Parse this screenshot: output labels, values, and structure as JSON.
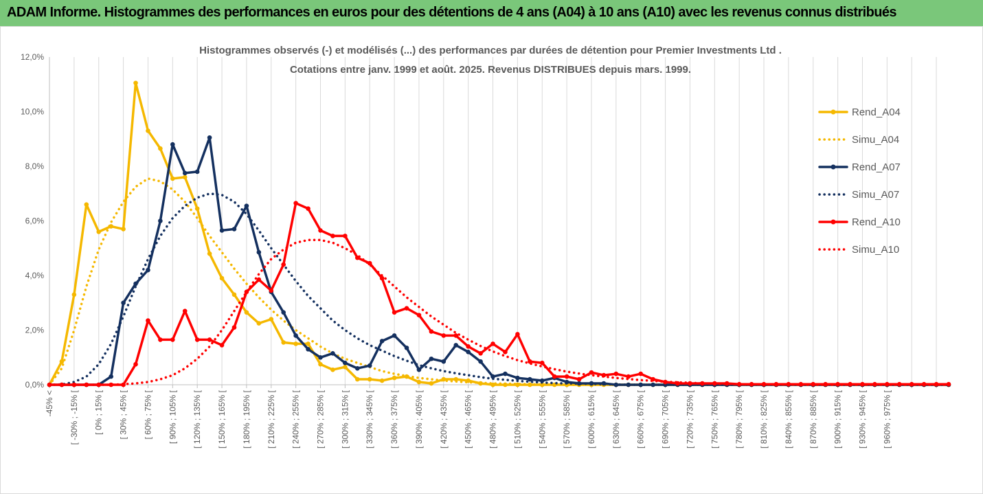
{
  "header": {
    "title": "ADAM Informe. Histogrammes des performances en euros pour des détentions de 4 ans (A04) à 10 ans (A10) avec les revenus connus distribués"
  },
  "chart_data": {
    "type": "line",
    "title_line1": "Histogrammes observés (-) et modélisés (...) des performances par durées de détention pour Premier Investments Ltd .",
    "title_line2": "Cotations entre janv. 1999 et août. 2025. Revenus DISTRIBUES depuis mars. 1999.",
    "xlabel": "",
    "ylabel": "",
    "ylim": [
      0,
      12
    ],
    "y_ticks": [
      "0,0%",
      "2,0%",
      "4,0%",
      "6,0%",
      "8,0%",
      "10,0%",
      "12,0%"
    ],
    "x_tick_labels": [
      "-45% <",
      "[ -30% ; -15% [",
      "[ 0% ; 15% [",
      "[ 30% ; 45% [",
      "[ 60% ; 75% [",
      "[ 90% ; 105% [",
      "[ 120% ; 135% [",
      "[ 150% ; 165% [",
      "[ 180% ; 195% [",
      "[ 210% ; 225% [",
      "[ 240% ; 255% [",
      "[ 270% ; 285% [",
      "[ 300% ; 315% [",
      "[ 330% ; 345% [",
      "[ 360% ; 375% [",
      "[ 390% ; 405% [",
      "[ 420% ; 435% [",
      "[ 450% ; 465% [",
      "[ 480% ; 495% [",
      "[ 510% ; 525% [",
      "[ 540% ; 555% [",
      "[ 570% ; 585% [",
      "[ 600% ; 615% [",
      "[ 630% ; 645% [",
      "[ 660% ; 675% [",
      "[ 690% ; 705% [",
      "[ 720% ; 735% [",
      "[ 750% ; 765% [",
      "[ 780% ; 795% [",
      "[ 810% ; 825% [",
      "[ 840% ; 855% [",
      "[ 870% ; 885% [",
      "[ 900% ; 915% [",
      "[ 930% ; 945% [",
      "[ 960% ; 975% ["
    ],
    "legend_position": "right",
    "grid": "vertical",
    "series": [
      {
        "name": "Rend_A04",
        "style": "solid",
        "color": "#f5b800",
        "values": [
          0.0,
          0.85,
          3.3,
          6.6,
          5.6,
          5.8,
          5.7,
          11.05,
          9.3,
          8.65,
          7.55,
          7.6,
          6.45,
          4.8,
          3.9,
          3.3,
          2.65,
          2.25,
          2.4,
          1.55,
          1.5,
          1.5,
          0.75,
          0.55,
          0.65,
          0.2,
          0.2,
          0.15,
          0.25,
          0.3,
          0.1,
          0.05,
          0.2,
          0.2,
          0.15,
          0.05,
          0,
          0,
          0,
          0,
          0,
          0,
          0,
          0,
          0,
          0,
          0,
          0,
          0,
          0,
          0,
          0,
          0,
          0,
          0,
          0,
          0,
          0,
          0,
          0,
          0,
          0,
          0,
          0,
          0,
          0,
          0,
          0,
          0,
          0,
          0,
          0,
          0,
          0
        ]
      },
      {
        "name": "Simu_A04",
        "style": "dotted",
        "color": "#f5b800",
        "values": [
          0.0,
          0.6,
          2.0,
          3.6,
          4.95,
          5.95,
          6.7,
          7.25,
          7.55,
          7.45,
          7.15,
          6.7,
          6.1,
          5.45,
          4.85,
          4.25,
          3.7,
          3.2,
          2.75,
          2.35,
          2.0,
          1.7,
          1.4,
          1.15,
          0.95,
          0.8,
          0.65,
          0.5,
          0.4,
          0.32,
          0.25,
          0.2,
          0.15,
          0.12,
          0.09,
          0.07,
          0.05,
          0.04,
          0.03,
          0.02,
          0.01,
          0.01,
          0,
          0,
          0,
          0,
          0,
          0,
          0,
          0,
          0,
          0,
          0,
          0,
          0,
          0,
          0,
          0,
          0,
          0,
          0,
          0,
          0,
          0,
          0,
          0,
          0,
          0,
          0,
          0,
          0,
          0,
          0,
          0
        ]
      },
      {
        "name": "Rend_A07",
        "style": "solid",
        "color": "#14305f",
        "values": [
          0,
          0,
          0,
          0,
          0,
          0.3,
          3.0,
          3.7,
          4.2,
          6.0,
          8.8,
          7.75,
          7.8,
          9.05,
          5.65,
          5.7,
          6.55,
          4.85,
          3.4,
          2.65,
          1.8,
          1.3,
          1.0,
          1.15,
          0.8,
          0.6,
          0.7,
          1.6,
          1.8,
          1.35,
          0.55,
          0.95,
          0.85,
          1.45,
          1.2,
          0.85,
          0.3,
          0.4,
          0.25,
          0.2,
          0.15,
          0.25,
          0.1,
          0.05,
          0.05,
          0.05,
          0,
          0,
          0,
          0,
          0,
          0,
          0,
          0,
          0,
          0,
          0,
          0,
          0,
          0,
          0,
          0,
          0,
          0,
          0,
          0,
          0,
          0,
          0,
          0,
          0,
          0,
          0,
          0
        ]
      },
      {
        "name": "Simu_A07",
        "style": "dotted",
        "color": "#14305f",
        "values": [
          0,
          0.01,
          0.1,
          0.3,
          0.75,
          1.5,
          2.5,
          3.6,
          4.6,
          5.45,
          6.1,
          6.55,
          6.85,
          7.0,
          6.95,
          6.7,
          6.25,
          5.65,
          5.0,
          4.4,
          3.8,
          3.25,
          2.8,
          2.35,
          2.0,
          1.7,
          1.45,
          1.25,
          1.05,
          0.88,
          0.72,
          0.6,
          0.5,
          0.42,
          0.35,
          0.28,
          0.22,
          0.18,
          0.14,
          0.11,
          0.08,
          0.06,
          0.05,
          0.04,
          0.03,
          0.02,
          0.01,
          0,
          0,
          0,
          0,
          0,
          0,
          0,
          0,
          0,
          0,
          0,
          0,
          0,
          0,
          0,
          0,
          0,
          0,
          0,
          0,
          0,
          0,
          0,
          0,
          0,
          0,
          0
        ]
      },
      {
        "name": "Rend_A10",
        "style": "solid",
        "color": "#ff0000",
        "values": [
          0,
          0,
          0,
          0,
          0,
          0,
          0,
          0.75,
          2.35,
          1.65,
          1.65,
          2.7,
          1.65,
          1.65,
          1.45,
          2.1,
          3.4,
          3.85,
          3.45,
          4.4,
          6.65,
          6.45,
          5.65,
          5.45,
          5.45,
          4.65,
          4.45,
          3.9,
          2.65,
          2.8,
          2.55,
          1.95,
          1.8,
          1.8,
          1.4,
          1.15,
          1.5,
          1.2,
          1.85,
          0.85,
          0.8,
          0.3,
          0.3,
          0.2,
          0.45,
          0.35,
          0.4,
          0.3,
          0.4,
          0.2,
          0.1,
          0.05,
          0.05,
          0.05,
          0.05,
          0.05,
          0.02,
          0.02,
          0.02,
          0.02,
          0.02,
          0.02,
          0.02,
          0.02,
          0.02,
          0.02,
          0.02,
          0.02,
          0.02,
          0.02,
          0.02,
          0.02,
          0.02,
          0.02
        ]
      },
      {
        "name": "Simu_A10",
        "style": "dotted",
        "color": "#ff0000",
        "values": [
          0,
          0,
          0,
          0,
          0,
          0,
          0.02,
          0.05,
          0.1,
          0.2,
          0.35,
          0.6,
          0.95,
          1.4,
          2.0,
          2.7,
          3.4,
          4.05,
          4.6,
          4.95,
          5.2,
          5.3,
          5.3,
          5.2,
          5.0,
          4.75,
          4.4,
          4.0,
          3.6,
          3.2,
          2.85,
          2.5,
          2.2,
          1.9,
          1.65,
          1.42,
          1.22,
          1.05,
          0.9,
          0.78,
          0.67,
          0.57,
          0.48,
          0.41,
          0.35,
          0.3,
          0.25,
          0.21,
          0.17,
          0.14,
          0.11,
          0.09,
          0.07,
          0.05,
          0.04,
          0.03,
          0.02,
          0.02,
          0.01,
          0.01,
          0.01,
          0,
          0,
          0,
          0,
          0,
          0,
          0,
          0,
          0,
          0,
          0,
          0,
          0
        ]
      }
    ]
  }
}
